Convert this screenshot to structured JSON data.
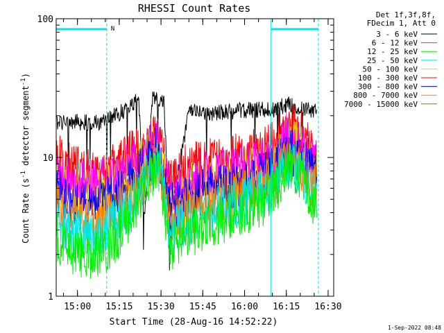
{
  "chart_data": {
    "type": "line",
    "title": "RHESSI Count Rates",
    "xlabel": "Start Time (28-Aug-16 14:52:22)",
    "ylabel_main": "Count Rate (s",
    "ylabel_sup1": "-1",
    "ylabel_mid": " detector segment",
    "ylabel_sup2": "-1",
    "ylabel_end": ")",
    "y_scale": "log",
    "ylim": [
      1,
      100
    ],
    "xlim": [
      "14:52:22",
      "16:32:00"
    ],
    "x_ticks": [
      "15:00",
      "15:15",
      "15:30",
      "15:45",
      "16:00",
      "16:15",
      "16:30"
    ],
    "y_ticks": [
      "1",
      "10",
      "100"
    ],
    "legend": {
      "placement": "top-right",
      "header": [
        "Det 1f,3f,8f,",
        "FDecim 1, Att 0"
      ],
      "entries": [
        {
          "label": "3 - 6 keV",
          "color": "#000000"
        },
        {
          "label": "6 - 12 keV",
          "color": "#ff00ff"
        },
        {
          "label": "12 - 25 keV",
          "color": "#00ee00"
        },
        {
          "label": "25 - 50 keV",
          "color": "#00e5e5"
        },
        {
          "label": "50 - 100 keV",
          "color": "#d4d400"
        },
        {
          "label": "100 - 300 keV",
          "color": "#ff0000"
        },
        {
          "label": "300 - 800 keV",
          "color": "#0000ff"
        },
        {
          "label": "800 - 7000 keV",
          "color": "#ff8000"
        },
        {
          "label": "7000 - 15000 keV",
          "color": "#808000"
        }
      ]
    },
    "annotations": {
      "night_marker": "N",
      "night_intervals": [
        [
          "14:52:22",
          "15:10:30"
        ],
        [
          "16:09:30",
          "16:26:30"
        ]
      ],
      "saa_or_boundary_solid": [
        "14:52:22",
        "16:09:30"
      ],
      "boundary_dashed": [
        "15:10:30",
        "16:26:30"
      ]
    },
    "series": [
      {
        "name": "3 - 6 keV",
        "color": "#000000",
        "x": [
          "14:52",
          "15:00",
          "15:10",
          "15:15",
          "15:20",
          "15:22",
          "15:24",
          "15:27",
          "15:30",
          "15:31",
          "15:33",
          "15:40",
          "15:45",
          "15:50",
          "16:00",
          "16:10",
          "16:15",
          "16:20",
          "16:26"
        ],
        "y": [
          18,
          18,
          18,
          21,
          24,
          28,
          3.5,
          28,
          24,
          26,
          3.5,
          21,
          21,
          21,
          22,
          22,
          24,
          23,
          21
        ]
      },
      {
        "name": "100 - 300 keV",
        "color": "#ff0000",
        "x": [
          "14:52",
          "14:55",
          "15:00",
          "15:05",
          "15:10",
          "15:15",
          "15:20",
          "15:24",
          "15:28",
          "15:30",
          "15:33",
          "15:40",
          "15:45",
          "15:50",
          "16:00",
          "16:10",
          "16:15",
          "16:20",
          "16:26"
        ],
        "y": [
          11,
          9,
          8,
          8,
          8,
          9,
          11,
          10,
          15,
          12,
          7,
          8.5,
          9,
          9.5,
          10,
          12,
          17,
          15,
          10
        ]
      },
      {
        "name": "50 - 100 keV",
        "color": "#d4d400",
        "x": [
          "14:52",
          "14:55",
          "15:00",
          "15:05",
          "15:10",
          "15:15",
          "15:20",
          "15:24",
          "15:28",
          "15:30",
          "15:33",
          "15:40",
          "15:45",
          "15:50",
          "16:00",
          "16:10",
          "16:15",
          "16:20",
          "16:26"
        ],
        "y": [
          7,
          6,
          5.5,
          5.5,
          5.7,
          6.5,
          8,
          9.5,
          12,
          10,
          5,
          6,
          6.5,
          7,
          7.5,
          9,
          13,
          12,
          8
        ]
      },
      {
        "name": "6 - 12 keV",
        "color": "#ff00ff",
        "x": [
          "14:52",
          "14:55",
          "15:00",
          "15:05",
          "15:10",
          "15:15",
          "15:20",
          "15:24",
          "15:28",
          "15:30",
          "15:33",
          "15:40",
          "15:45",
          "15:50",
          "16:00",
          "16:10",
          "16:15",
          "16:20",
          "16:26"
        ],
        "y": [
          8,
          7,
          6.5,
          6.5,
          6.8,
          7.5,
          9,
          10,
          13,
          11,
          6,
          7,
          7.5,
          8,
          8.5,
          10,
          14,
          13,
          9
        ]
      },
      {
        "name": "300 - 800 keV",
        "color": "#0000ff",
        "x": [
          "14:52",
          "14:55",
          "15:00",
          "15:05",
          "15:10",
          "15:15",
          "15:20",
          "15:24",
          "15:28",
          "15:30",
          "15:33",
          "15:40",
          "15:45",
          "15:50",
          "16:00",
          "16:10",
          "16:15",
          "16:20",
          "16:26"
        ],
        "y": [
          6,
          5,
          4.5,
          4.5,
          4.8,
          5.5,
          7,
          8.5,
          11,
          9,
          4.3,
          5,
          5.5,
          6,
          6.5,
          8,
          11,
          10,
          7
        ]
      },
      {
        "name": "800 - 7000 keV",
        "color": "#ff8000",
        "x": [
          "14:52",
          "14:55",
          "15:00",
          "15:05",
          "15:10",
          "15:15",
          "15:20",
          "15:24",
          "15:28",
          "15:30",
          "15:33",
          "15:40",
          "15:45",
          "15:50",
          "16:00",
          "16:10",
          "16:15",
          "16:20",
          "16:26"
        ],
        "y": [
          4.5,
          4,
          3.6,
          3.5,
          3.7,
          4.3,
          5.5,
          7,
          9.5,
          8,
          3.5,
          4.2,
          4.5,
          5,
          5.5,
          6.8,
          9.5,
          8.5,
          6
        ]
      },
      {
        "name": "25 - 50 keV",
        "color": "#00e5e5",
        "x": [
          "14:52",
          "14:55",
          "15:00",
          "15:05",
          "15:10",
          "15:15",
          "15:20",
          "15:24",
          "15:28",
          "15:30",
          "15:33",
          "15:40",
          "15:45",
          "15:50",
          "16:00",
          "16:10",
          "16:15",
          "16:20",
          "16:26"
        ],
        "y": [
          3.8,
          3.2,
          2.8,
          2.8,
          3,
          3.6,
          4.8,
          6.5,
          9,
          7.5,
          2.8,
          3.4,
          3.8,
          4.2,
          4.8,
          6,
          9,
          8,
          5
        ]
      },
      {
        "name": "12 - 25 keV",
        "color": "#00ee00",
        "x": [
          "14:52",
          "14:55",
          "15:00",
          "15:05",
          "15:10",
          "15:15",
          "15:20",
          "15:24",
          "15:28",
          "15:30",
          "15:33",
          "15:40",
          "15:45",
          "15:50",
          "16:00",
          "16:10",
          "16:15",
          "16:20",
          "16:26"
        ],
        "y": [
          2.8,
          2.3,
          2,
          2,
          2.2,
          2.8,
          4,
          6,
          8.5,
          7,
          2.2,
          2.7,
          3,
          3.5,
          4,
          5.3,
          8.5,
          7.5,
          4.2
        ]
      }
    ]
  },
  "footer": {
    "timestamp": "1-Sep-2022 08:48"
  }
}
